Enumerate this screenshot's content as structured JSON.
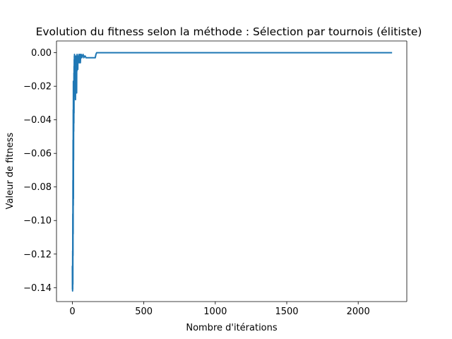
{
  "chart_data": {
    "type": "line",
    "title": "Evolution du fitness selon la méthode : Sélection par tournois (élitiste)",
    "xlabel": "Nombre d'itérations",
    "ylabel": "Valeur de fitness",
    "xlim": [
      -111,
      2340
    ],
    "ylim": [
      -0.1483,
      0.007
    ],
    "xticks": [
      0,
      500,
      1000,
      1500,
      2000
    ],
    "yticks": [
      -0.14,
      -0.12,
      -0.1,
      -0.08,
      -0.06,
      -0.04,
      -0.02,
      0.0
    ],
    "xtick_labels": [
      "0",
      "500",
      "1000",
      "1500",
      "2000"
    ],
    "ytick_labels": [
      "−0.14",
      "−0.12",
      "−0.10",
      "−0.08",
      "−0.06",
      "−0.04",
      "−0.02",
      "0.00"
    ],
    "grid": false,
    "series": [
      {
        "color": "#1f77b4",
        "x": [
          0,
          0.5,
          1,
          1.5,
          2,
          2.5,
          3,
          3.5,
          4,
          4.5,
          5,
          5.5,
          6,
          6.5,
          7,
          7.5,
          8,
          8.5,
          9,
          9.5,
          10,
          10.5,
          11,
          11.5,
          12,
          12.5,
          13,
          13.5,
          14,
          14.5,
          15,
          16,
          17,
          18,
          19,
          20,
          21,
          22,
          23,
          24,
          25,
          26,
          27,
          28,
          29,
          30,
          31,
          32,
          33,
          34,
          35,
          36,
          37,
          38,
          39,
          40,
          42,
          44,
          46,
          48,
          50,
          52,
          54,
          56,
          58,
          60,
          62,
          64,
          66,
          68,
          70,
          75,
          80,
          85,
          90,
          95,
          100,
          120,
          140,
          160,
          165,
          170,
          2237
        ],
        "y": [
          -0.127,
          -0.141,
          -0.134,
          -0.142,
          -0.118,
          -0.141,
          -0.096,
          -0.138,
          -0.076,
          -0.121,
          -0.052,
          -0.108,
          -0.034,
          -0.091,
          -0.017,
          -0.087,
          -0.022,
          -0.064,
          -0.028,
          -0.047,
          -0.019,
          -0.042,
          -0.012,
          -0.036,
          -0.008,
          -0.026,
          -0.004,
          -0.021,
          -0.002,
          -0.018,
          -0.001,
          -0.014,
          -0.003,
          -0.016,
          -0.005,
          -0.01,
          -0.002,
          -0.028,
          -0.003,
          -0.022,
          -0.006,
          -0.012,
          -0.002,
          -0.017,
          -0.004,
          -0.024,
          -0.002,
          -0.011,
          -0.001,
          -0.008,
          -0.003,
          -0.006,
          -0.002,
          -0.01,
          -0.003,
          -0.005,
          -0.002,
          -0.004,
          -0.001,
          -0.006,
          -0.002,
          -0.004,
          -0.001,
          -0.006,
          -0.002,
          -0.003,
          -0.001,
          -0.002,
          -0.003,
          -0.002,
          -0.002,
          -0.001,
          -0.003,
          -0.002,
          -0.002,
          -0.003,
          -0.003,
          -0.003,
          -0.003,
          -0.003,
          -0.001,
          0.0,
          0.0
        ]
      }
    ]
  }
}
